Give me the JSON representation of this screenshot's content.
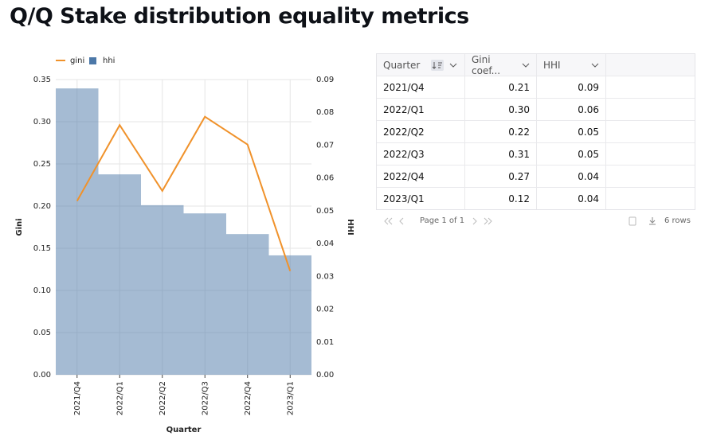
{
  "title": "Q/Q Stake distribution equality metrics",
  "chart_data": {
    "type": "combo",
    "categories": [
      "2021/Q4",
      "2022/Q1",
      "2022/Q2",
      "2022/Q3",
      "2022/Q4",
      "2023/Q1"
    ],
    "series": [
      {
        "name": "gini",
        "type": "line",
        "color": "#f0922b",
        "axis": "y",
        "values": [
          0.206,
          0.296,
          0.218,
          0.306,
          0.273,
          0.123
        ]
      },
      {
        "name": "hhi",
        "type": "bar",
        "color": "#4c78a8",
        "axis": "y2",
        "values": [
          0.0873,
          0.0611,
          0.0517,
          0.0492,
          0.0429,
          0.0364
        ]
      }
    ],
    "x_label": "Quarter",
    "y_label": "Gini",
    "y2_label": "HHI",
    "ylim": [
      0,
      0.35
    ],
    "yticks": [
      {
        "value": 0,
        "label": "0.00"
      },
      {
        "value": 0.05,
        "label": "0.05"
      },
      {
        "value": 0.1,
        "label": "0.10"
      },
      {
        "value": 0.15,
        "label": "0.15"
      },
      {
        "value": 0.2,
        "label": "0.20"
      },
      {
        "value": 0.25,
        "label": "0.25"
      },
      {
        "value": 0.3,
        "label": "0.30"
      },
      {
        "value": 0.35,
        "label": "0.35"
      }
    ],
    "y2lim": [
      0,
      0.09
    ],
    "y2ticks": [
      {
        "value": 0,
        "label": "0.00"
      },
      {
        "value": 0.01,
        "label": "0.01"
      },
      {
        "value": 0.02,
        "label": "0.02"
      },
      {
        "value": 0.03,
        "label": "0.03"
      },
      {
        "value": 0.04,
        "label": "0.04"
      },
      {
        "value": 0.05,
        "label": "0.05"
      },
      {
        "value": 0.06,
        "label": "0.06"
      },
      {
        "value": 0.07,
        "label": "0.07"
      },
      {
        "value": 0.08,
        "label": "0.08"
      },
      {
        "value": 0.09,
        "label": "0.09"
      }
    ],
    "grid": true
  },
  "table": {
    "headers": [
      "Quarter",
      "Gini coef...",
      "HHI"
    ],
    "rows": [
      [
        "2021/Q4",
        "0.21",
        "0.09"
      ],
      [
        "2022/Q1",
        "0.30",
        "0.06"
      ],
      [
        "2022/Q2",
        "0.22",
        "0.05"
      ],
      [
        "2022/Q3",
        "0.31",
        "0.05"
      ],
      [
        "2022/Q4",
        "0.27",
        "0.04"
      ],
      [
        "2023/Q1",
        "0.12",
        "0.04"
      ]
    ],
    "pager": "Page 1 of 1",
    "row_count": "6 rows"
  }
}
